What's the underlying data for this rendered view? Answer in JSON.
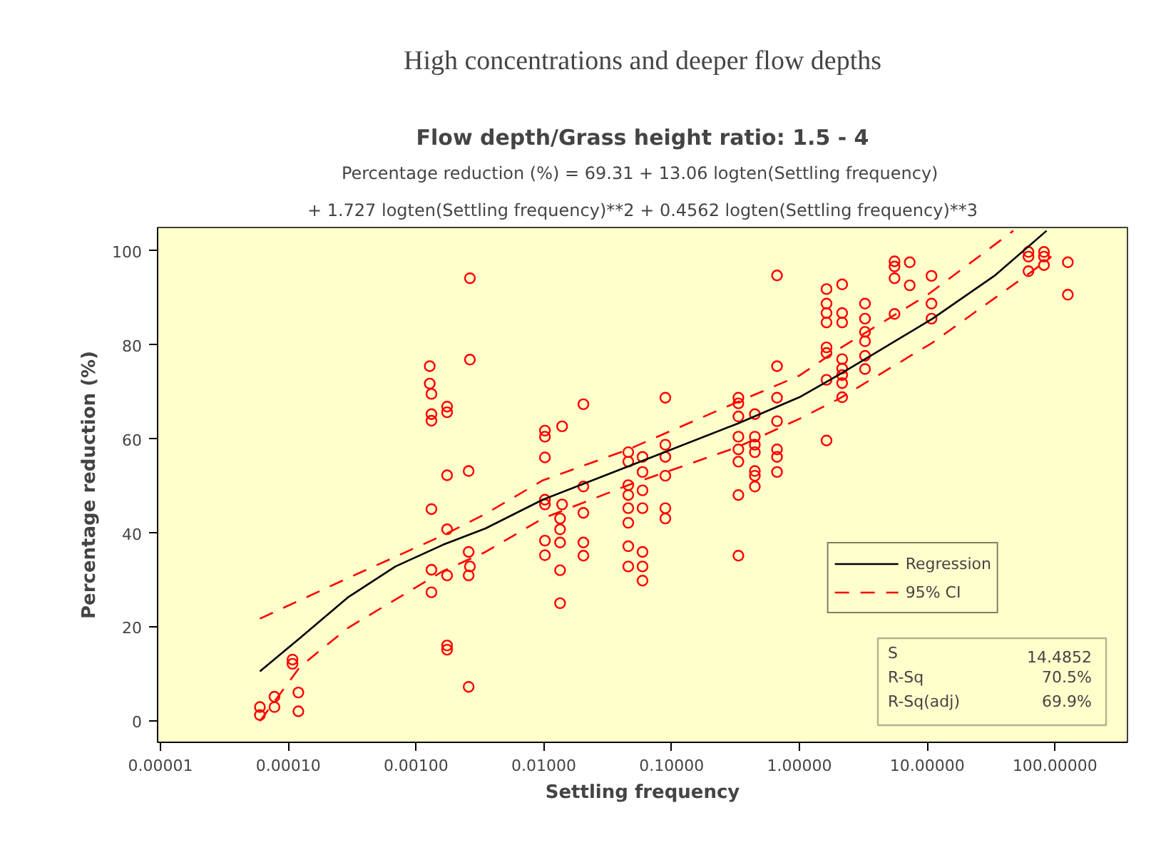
{
  "chart_data": {
    "type": "scatter",
    "title": "High concentrations and deeper flow depths",
    "subtitle": "Flow depth/Grass height ratio: 1.5 - 4",
    "xlabel": "Settling frequency",
    "ylabel": "Percentage reduction (%)",
    "annotations": [
      "Percentage reduction (%) =  69.31 + 13.06 logten(Settling frequency)",
      "+ 1.727 logten(Settling frequency)**2 + 0.4562 logten(Settling frequency)**3",
      "S 14.4852",
      "R-Sq 70.5%",
      "R-Sq(adj) 69.9%"
    ],
    "log": "x",
    "grid": false,
    "legend": "bottom right",
    "xlim": [
      9.5e-06,
      369
    ],
    "ylim": [
      -4.5,
      105
    ],
    "xticks": [
      {
        "value": 1e-05,
        "label": "0.00001"
      },
      {
        "value": 0.0001,
        "label": "0.00010"
      },
      {
        "value": 0.001,
        "label": "0.00100"
      },
      {
        "value": 0.01,
        "label": "0.01000"
      },
      {
        "value": 0.1,
        "label": "0.10000"
      },
      {
        "value": 1,
        "label": "1.00000"
      },
      {
        "value": 10,
        "label": "10.00000"
      },
      {
        "value": 100,
        "label": "100.00000"
      }
    ],
    "yticks": [
      0,
      20,
      40,
      60,
      80,
      100
    ],
    "series": [
      {
        "color": "#ff0000",
        "marker": "circle",
        "x": [
          6e-05,
          6e-05,
          7.8e-05,
          7.8e-05,
          0.000108,
          0.000108,
          0.00012,
          0.00012,
          0.00128,
          0.00128,
          0.00132,
          0.00132,
          0.00132,
          0.00132,
          0.00132,
          0.00132,
          0.00175,
          0.00175,
          0.00175,
          0.00175,
          0.00175,
          0.00175,
          0.00175,
          0.00258,
          0.00258,
          0.00258,
          0.00258,
          0.00264,
          0.00264,
          0.00264,
          0.0102,
          0.0102,
          0.0102,
          0.0102,
          0.0102,
          0.0102,
          0.0102,
          0.0134,
          0.0134,
          0.0134,
          0.0134,
          0.0134,
          0.0139,
          0.0139,
          0.0204,
          0.0204,
          0.0204,
          0.0204,
          0.0204,
          0.0458,
          0.0458,
          0.0458,
          0.0458,
          0.0458,
          0.0458,
          0.0458,
          0.0458,
          0.0592,
          0.0592,
          0.0592,
          0.0592,
          0.0592,
          0.0592,
          0.0592,
          0.0893,
          0.0893,
          0.0893,
          0.0893,
          0.0893,
          0.0893,
          0.333,
          0.333,
          0.333,
          0.333,
          0.333,
          0.333,
          0.333,
          0.333,
          0.448,
          0.448,
          0.448,
          0.448,
          0.448,
          0.448,
          0.448,
          0.668,
          0.668,
          0.668,
          0.668,
          0.668,
          0.668,
          0.668,
          1.63,
          1.63,
          1.63,
          1.63,
          1.63,
          1.63,
          1.63,
          1.63,
          2.16,
          2.16,
          2.16,
          2.16,
          2.16,
          2.16,
          2.16,
          2.16,
          3.26,
          3.26,
          3.26,
          3.26,
          3.26,
          3.26,
          5.55,
          5.55,
          5.55,
          5.55,
          7.3,
          7.3,
          10.8,
          10.8,
          10.8,
          62,
          62,
          62,
          82,
          82,
          82,
          126,
          126
        ],
        "values": [
          1.3,
          3.0,
          5.2,
          3.0,
          13.1,
          12.2,
          6.1,
          2.1,
          75.5,
          71.8,
          69.6,
          65.3,
          63.9,
          45.1,
          32.2,
          27.4,
          66.9,
          65.7,
          52.3,
          40.8,
          31.0,
          16.1,
          15.2,
          53.2,
          36.0,
          31.0,
          7.3,
          94.2,
          76.9,
          32.9,
          61.8,
          60.5,
          56.1,
          47.1,
          46.1,
          38.4,
          35.3,
          43.1,
          40.8,
          38.0,
          32.1,
          25.1,
          46.1,
          62.7,
          67.4,
          49.9,
          44.3,
          38.0,
          35.2,
          57.2,
          55.2,
          50.2,
          48.1,
          45.3,
          42.2,
          37.2,
          32.9,
          56.2,
          53.0,
          49.1,
          45.3,
          36.0,
          32.9,
          29.9,
          56.2,
          58.8,
          52.2,
          45.3,
          43.1,
          68.8,
          68.8,
          67.6,
          64.8,
          60.5,
          57.8,
          55.2,
          48.1,
          35.2,
          65.3,
          60.5,
          58.8,
          57.2,
          53.2,
          52.2,
          49.9,
          94.8,
          75.5,
          68.8,
          63.8,
          57.8,
          56.2,
          53.0,
          91.9,
          88.8,
          86.8,
          84.8,
          79.5,
          78.3,
          72.6,
          59.7,
          92.9,
          86.8,
          84.8,
          77.0,
          75.0,
          73.6,
          71.9,
          68.9,
          88.8,
          85.6,
          82.8,
          80.8,
          77.7,
          74.9,
          97.8,
          96.7,
          94.2,
          86.6,
          97.6,
          92.7,
          94.7,
          88.8,
          85.6,
          99.8,
          98.8,
          95.7,
          99.8,
          98.8,
          97.0,
          97.6,
          90.7
        ]
      },
      {
        "type": "line",
        "name": "Regression",
        "color": "#000000",
        "line_style": "solid",
        "x": [
          6e-05,
          0.000124,
          0.000292,
          0.00069,
          0.00162,
          0.0035,
          0.0098,
          0.0458,
          0.329,
          1.0,
          1.99,
          11.0,
          33.5,
          85.9
        ],
        "values": [
          10.6,
          17.7,
          26.3,
          32.9,
          37.5,
          41.0,
          47.1,
          54.2,
          63.3,
          68.9,
          73.5,
          85.6,
          94.7,
          104.3
        ]
      },
      {
        "type": "line",
        "name": "95% CI",
        "color": "#ff0000",
        "line_style": "dashed",
        "x": [
          6e-05,
          0.000292,
          0.00162,
          0.0035,
          0.0098,
          0.0458,
          0.329,
          1.0,
          1.99,
          10.1,
          47.2
        ],
        "values": [
          21.8,
          30.4,
          39.5,
          44.1,
          51.2,
          57.8,
          67.9,
          73.5,
          79.0,
          90.7,
          104.3
        ]
      },
      {
        "type": "line",
        "color": "#ff0000",
        "line_style": "dashed",
        "x": [
          6e-05,
          0.000124,
          0.000292,
          0.00162,
          0.0035,
          0.0098,
          0.0458,
          0.329,
          1.0,
          1.99,
          11.0,
          66.4,
          93.7
        ],
        "values": [
          0.0,
          11.6,
          19.8,
          31.9,
          36.0,
          43.1,
          50.2,
          58.3,
          64.3,
          68.4,
          80.5,
          95.7,
          98.8
        ]
      }
    ]
  }
}
